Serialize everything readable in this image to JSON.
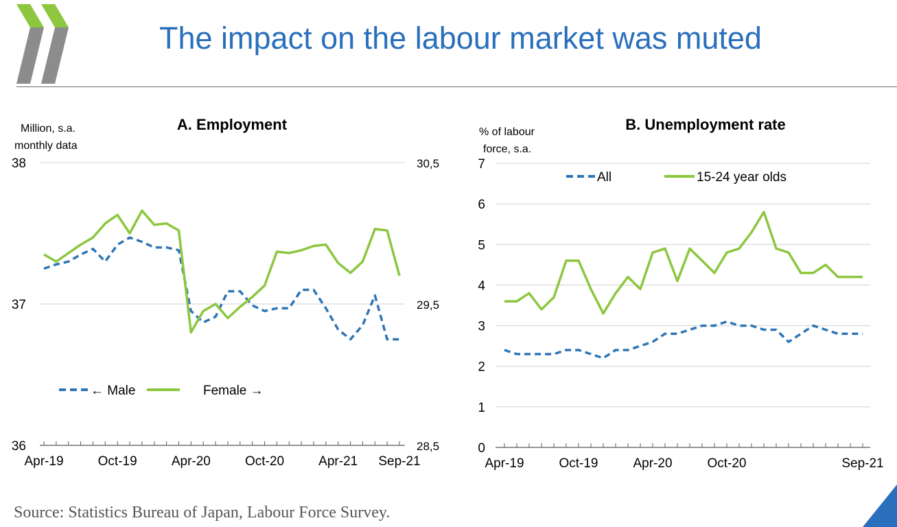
{
  "slide": {
    "title": "The impact on the labour market was muted",
    "source": "Source: Statistics Bureau of Japan, Labour Force Survey.",
    "logo_icon": "double-chevron-logo",
    "colors": {
      "title": "#2a6fbb",
      "blue_series": "#2e75b6",
      "green_series": "#8dc63f",
      "logo_green": "#8dc63f",
      "logo_grey": "#7f7f7f",
      "corner": "#2a6fbb"
    }
  },
  "chart_data": [
    {
      "id": "employment",
      "type": "line",
      "title": "A. Employment",
      "ylabel_lines": [
        "Million, s.a.",
        "monthly data"
      ],
      "x_ticks": [
        "Apr-19",
        "Oct-19",
        "Apr-20",
        "Oct-20",
        "Apr-21",
        "Sep-21"
      ],
      "x_tick_index": [
        0,
        6,
        12,
        18,
        24,
        29
      ],
      "n_points": 30,
      "y_left": {
        "min": 36,
        "max": 38,
        "ticks": [
          "36",
          "37",
          "38"
        ]
      },
      "y_right": {
        "min": 28.5,
        "max": 30.5,
        "ticks": [
          "28,5",
          "29,5",
          "30,5"
        ]
      },
      "series": [
        {
          "name": "← Male",
          "axis": "left",
          "style": "dashed",
          "color": "#2e75b6",
          "values": [
            37.25,
            37.28,
            37.3,
            37.35,
            37.39,
            37.3,
            37.42,
            37.47,
            37.44,
            37.4,
            37.4,
            37.38,
            36.95,
            36.87,
            36.91,
            37.09,
            37.09,
            36.99,
            36.95,
            36.97,
            36.97,
            37.1,
            37.1,
            36.97,
            36.82,
            36.75,
            36.85,
            37.06,
            36.75,
            36.75
          ]
        },
        {
          "name": "Female →",
          "axis": "right",
          "style": "solid",
          "color": "#8dc63f",
          "values": [
            29.85,
            29.8,
            29.86,
            29.92,
            29.97,
            30.07,
            30.13,
            30.0,
            30.16,
            30.06,
            30.07,
            30.02,
            29.3,
            29.45,
            29.5,
            29.4,
            29.48,
            29.55,
            29.63,
            29.87,
            29.86,
            29.88,
            29.91,
            29.92,
            29.79,
            29.72,
            29.8,
            30.03,
            30.02,
            29.7
          ]
        }
      ],
      "legend": [
        "← Male",
        "Female →"
      ]
    },
    {
      "id": "unemployment",
      "type": "line",
      "title": "B. Unemployment rate",
      "ylabel_lines": [
        "% of labour",
        "force, s.a."
      ],
      "x_ticks": [
        "Apr-19",
        "Oct-19",
        "Apr-20",
        "Oct-20",
        "Sep-21"
      ],
      "x_tick_index": [
        0,
        6,
        12,
        18,
        29
      ],
      "n_points": 30,
      "y_left": {
        "min": 0,
        "max": 7,
        "ticks": [
          "0",
          "1",
          "2",
          "3",
          "4",
          "5",
          "6",
          "7"
        ]
      },
      "series": [
        {
          "name": "All",
          "style": "dashed",
          "color": "#2e75b6",
          "values": [
            2.4,
            2.3,
            2.3,
            2.3,
            2.3,
            2.4,
            2.4,
            2.3,
            2.2,
            2.4,
            2.4,
            2.5,
            2.6,
            2.8,
            2.8,
            2.9,
            3.0,
            3.0,
            3.1,
            3.0,
            3.0,
            2.9,
            2.9,
            2.6,
            2.8,
            3.0,
            2.9,
            2.8,
            2.8,
            2.8
          ]
        },
        {
          "name": "15-24 year olds",
          "style": "solid",
          "color": "#8dc63f",
          "values": [
            3.6,
            3.6,
            3.8,
            3.4,
            3.7,
            4.6,
            4.6,
            3.9,
            3.3,
            3.8,
            4.2,
            3.9,
            4.8,
            4.9,
            4.1,
            4.9,
            4.6,
            4.3,
            4.8,
            4.9,
            5.3,
            5.8,
            4.9,
            4.8,
            4.3,
            4.3,
            4.5,
            4.2,
            4.2,
            4.2
          ]
        }
      ],
      "legend": [
        "All",
        "15-24 year olds"
      ]
    }
  ]
}
